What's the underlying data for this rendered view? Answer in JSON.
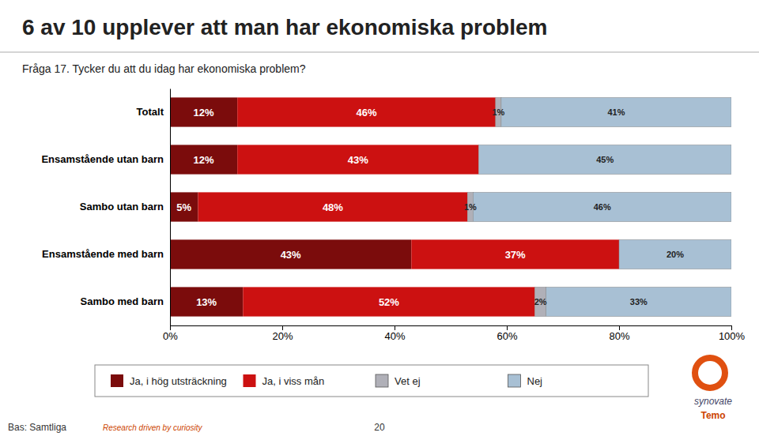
{
  "chart_data": {
    "type": "bar",
    "title": "6 av 10 upplever att man har ekonomiska problem",
    "subtitle": "Fråga 17. Tycker du att du idag har ekonomiska problem?",
    "orientation": "horizontal",
    "stacked": true,
    "data_labels": true,
    "grid": false,
    "legend": "bottom",
    "categories": [
      "Totalt",
      "Ensamstående utan barn",
      "Sambo utan barn",
      "Ensamstående med barn",
      "Sambo med barn"
    ],
    "series": [
      {
        "name": "Ja, i hög utsträckning",
        "color": "#7B0C0C",
        "values": [
          12,
          12,
          5,
          43,
          13
        ],
        "value_labels": [
          "12%",
          "12%",
          "5%",
          "43%",
          "13%"
        ]
      },
      {
        "name": "Ja, i viss mån",
        "color": "#CC1111",
        "values": [
          46,
          43,
          48,
          37,
          52
        ],
        "value_labels": [
          "46%",
          "43%",
          "48%",
          "37%",
          "52%"
        ]
      },
      {
        "name": "Vet ej",
        "color": "#B0B0B8",
        "values": [
          1,
          0,
          1,
          0,
          2
        ],
        "value_labels": [
          "1%",
          null,
          "1%",
          null,
          "2%"
        ]
      },
      {
        "name": "Nej",
        "color": "#A8C0D4",
        "values": [
          41,
          45,
          46,
          20,
          33
        ],
        "value_labels": [
          "41%",
          "45%",
          "46%",
          "20%",
          "33%"
        ]
      }
    ],
    "xlim": [
      0,
      100
    ],
    "xticks": [
      {
        "value": 0,
        "label": "0%"
      },
      {
        "value": 20,
        "label": "20%"
      },
      {
        "value": 40,
        "label": "40%"
      },
      {
        "value": 60,
        "label": "60%"
      },
      {
        "value": 80,
        "label": "80%"
      },
      {
        "value": 100,
        "label": "100%"
      }
    ],
    "annotations": [
      "Bas: Samtliga",
      "20",
      "Research driven by curiosity",
      "synovate",
      "Temo"
    ]
  }
}
